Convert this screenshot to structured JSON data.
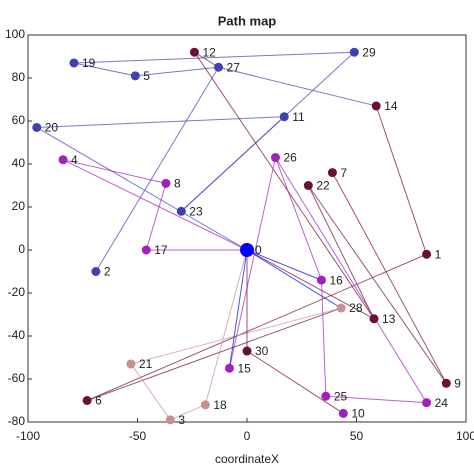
{
  "chart_data": {
    "type": "scatter",
    "title": "Path map",
    "x_label": "coordinateX",
    "labels": [
      "0",
      "1",
      "2",
      "3",
      "4",
      "5",
      "6",
      "7",
      "8",
      "9",
      "10",
      "11",
      "12",
      "13",
      "14",
      "15",
      "16",
      "17",
      "18",
      "19",
      "20",
      "21",
      "22",
      "23",
      "24",
      "25",
      "26",
      "27",
      "28",
      "29",
      "30"
    ],
    "x": [
      0,
      82,
      -69,
      -35,
      -84,
      -51,
      -73,
      39,
      -37,
      91,
      44,
      17,
      -24,
      58,
      59,
      -8,
      34,
      -46,
      -19,
      -79,
      -96,
      -53,
      28,
      -30,
      82,
      36,
      13,
      -13,
      43,
      49,
      0
    ],
    "y": [
      0,
      -2,
      -10,
      -79,
      42,
      81,
      -70,
      36,
      31,
      -62,
      -76,
      62,
      92,
      -32,
      67,
      -55,
      -14,
      0,
      -72,
      87,
      57,
      -53,
      30,
      18,
      -71,
      -68,
      43,
      85,
      -27,
      92,
      -47
    ],
    "colors": [
      "#0000ff",
      "#6b1030",
      "#4040b0",
      "#c89090",
      "#a020c0",
      "#4040b0",
      "#6b1030",
      "#6b1030",
      "#a020c0",
      "#6b1030",
      "#a020c0",
      "#4040b0",
      "#6b1030",
      "#6b1030",
      "#6b1030",
      "#a020c0",
      "#a020c0",
      "#a020c0",
      "#c89090",
      "#4040b0",
      "#4040b0",
      "#c89090",
      "#6b1030",
      "#4040b0",
      "#a020c0",
      "#a020c0",
      "#a020c0",
      "#4040b0",
      "#c89090",
      "#4040b0",
      "#6b1030"
    ],
    "edges": [
      [
        19,
        29
      ],
      [
        19,
        5
      ],
      [
        5,
        27
      ],
      [
        27,
        2
      ],
      [
        20,
        11
      ],
      [
        20,
        0
      ],
      [
        23,
        29
      ],
      [
        12,
        27
      ],
      [
        27,
        14
      ],
      [
        14,
        1
      ],
      [
        1,
        6
      ],
      [
        6,
        28
      ],
      [
        21,
        28
      ],
      [
        21,
        3
      ],
      [
        3,
        18
      ],
      [
        18,
        0
      ],
      [
        12,
        13
      ],
      [
        13,
        0
      ],
      [
        22,
        13
      ],
      [
        7,
        9
      ],
      [
        22,
        9
      ],
      [
        4,
        8
      ],
      [
        8,
        17
      ],
      [
        17,
        0
      ],
      [
        4,
        0
      ],
      [
        0,
        16
      ],
      [
        16,
        26
      ],
      [
        26,
        24
      ],
      [
        26,
        15
      ],
      [
        0,
        15
      ],
      [
        16,
        25
      ],
      [
        25,
        24
      ],
      [
        30,
        10
      ],
      [
        30,
        0
      ],
      [
        0,
        28
      ],
      [
        23,
        11
      ]
    ],
    "xlim": [
      -100,
      100
    ],
    "ylim": [
      -80,
      100
    ],
    "xticks": [
      -100,
      -50,
      0,
      50,
      100
    ],
    "yticks": [
      -80,
      -60,
      -40,
      -20,
      0,
      20,
      40,
      60,
      80,
      100
    ]
  }
}
